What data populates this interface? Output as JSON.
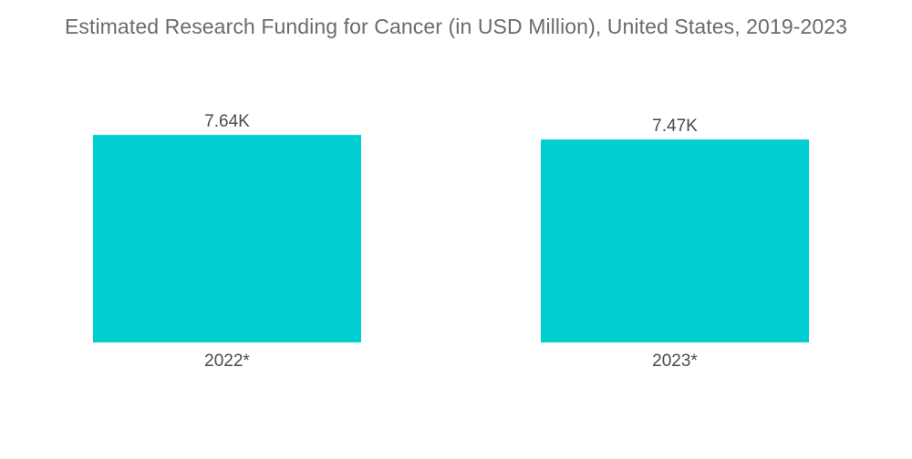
{
  "chart_data": {
    "type": "bar",
    "title": "Estimated Research Funding for Cancer (in USD Million), United States, 2019-2023",
    "categories": [
      "2022*",
      "2023*"
    ],
    "values": [
      7640,
      7470
    ],
    "data_labels": [
      "7.64K",
      "7.47K"
    ],
    "xlabel": "",
    "ylabel": "",
    "ylim": [
      0,
      8000
    ],
    "grid": false,
    "legend": "none",
    "bar_color": "#00CED1"
  }
}
